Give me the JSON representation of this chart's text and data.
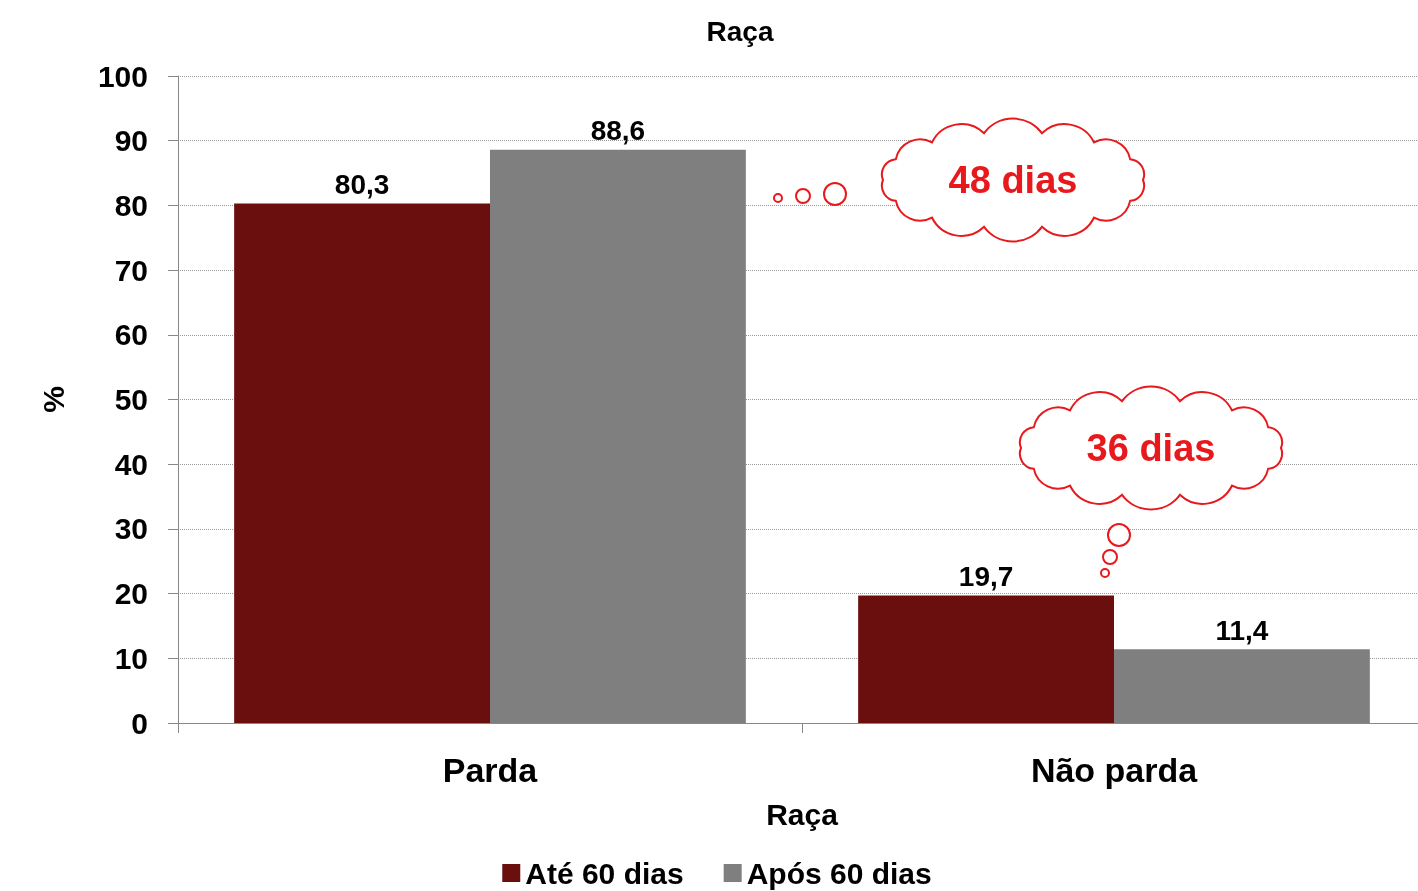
{
  "chart_data": {
    "type": "bar",
    "title": "Raça",
    "xlabel": "Raça",
    "ylabel": "%",
    "categories": [
      "Parda",
      "Não parda"
    ],
    "series": [
      {
        "name": "Até 60 dias",
        "color": "#6b0e0e",
        "values": [
          80.3,
          19.7
        ],
        "value_labels": [
          "80,3",
          "19,7"
        ]
      },
      {
        "name": "Após 60 dias",
        "color": "#7f7f7f",
        "values": [
          88.6,
          11.4
        ],
        "value_labels": [
          "88,6",
          "11,4"
        ]
      }
    ],
    "ylim": [
      0,
      100
    ],
    "yticks": [
      0,
      10,
      20,
      30,
      40,
      50,
      60,
      70,
      80,
      90,
      100
    ],
    "grid": "y",
    "legend": "bottom",
    "annotations": [
      "48 dias",
      "36 dias"
    ]
  }
}
